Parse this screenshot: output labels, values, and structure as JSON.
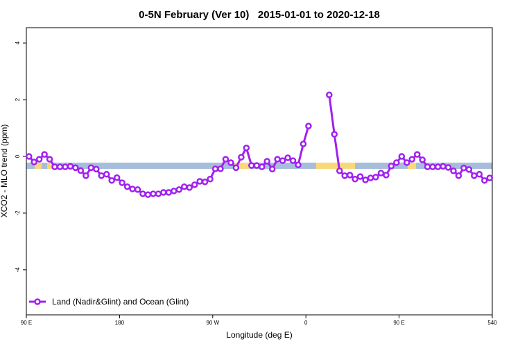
{
  "chart_data": {
    "type": "line",
    "title": "0-5N February (Ver 10)   2015-01-01 to 2020-12-18",
    "x_label": "Longitude (deg E)",
    "y_label": "XCO2 - MLO trend (ppm)",
    "x": [
      92.5,
      97.5,
      102.5,
      107.5,
      112.5,
      117.5,
      122.5,
      127.5,
      132.5,
      137.5,
      142.5,
      147.5,
      152.5,
      157.5,
      162.5,
      167.5,
      172.5,
      177.5,
      182.5,
      187.5,
      192.5,
      197.5,
      202.5,
      207.5,
      212.5,
      217.5,
      222.5,
      227.5,
      232.5,
      237.5,
      242.5,
      247.5,
      252.5,
      257.5,
      262.5,
      267.5,
      272.5,
      277.5,
      282.5,
      287.5,
      292.5,
      297.5,
      302.5,
      307.5,
      312.5,
      317.5,
      322.5,
      327.5,
      332.5,
      337.5,
      342.5,
      347.5,
      352.5,
      357.5,
      362.5,
      367.5,
      372.5,
      377.5,
      382.5,
      387.5,
      392.5,
      397.5,
      402.5,
      407.5,
      412.5,
      417.5,
      422.5,
      427.5,
      432.5,
      437.5,
      442.5,
      447.5,
      452.5,
      457.5,
      462.5,
      467.5,
      472.5,
      477.5,
      482.5,
      487.5,
      492.5,
      497.5,
      502.5,
      507.5,
      512.5,
      517.5,
      522.5,
      527.5,
      532.5,
      537.5
    ],
    "series": [
      {
        "name": "Land (Nadir&Glint) and Ocean (Glint)",
        "color": "#a020f0",
        "values": [
          0,
          -0.2,
          -0.1,
          0.07,
          -0.1,
          -0.37,
          -0.37,
          -0.37,
          -0.35,
          -0.4,
          -0.5,
          -0.68,
          -0.4,
          -0.45,
          -0.68,
          -0.63,
          -0.85,
          -0.75,
          -0.93,
          -1.07,
          -1.15,
          -1.17,
          -1.32,
          -1.35,
          -1.32,
          -1.32,
          -1.27,
          -1.27,
          -1.22,
          -1.17,
          -1.07,
          -1.1,
          -1.0,
          -0.88,
          -0.9,
          -0.8,
          -0.44,
          -0.44,
          -0.1,
          -0.22,
          -0.4,
          -0.03,
          0.3,
          -0.32,
          -0.32,
          -0.37,
          -0.17,
          -0.45,
          -0.1,
          -0.15,
          -0.05,
          -0.15,
          -0.3,
          0.44,
          1.07,
          null,
          null,
          null,
          2.17,
          0.78,
          -0.51,
          -0.68,
          -0.66,
          -0.8,
          -0.71,
          -0.83,
          -0.76,
          -0.73,
          -0.59,
          -0.66,
          -0.34,
          -0.22,
          0,
          -0.22,
          -0.1,
          0.07,
          -0.12,
          -0.37,
          -0.37,
          -0.37,
          -0.35,
          -0.39,
          -0.51,
          -0.68,
          -0.41,
          -0.46,
          -0.68,
          -0.63,
          -0.85,
          -0.76
        ]
      }
    ],
    "xlim": [
      90,
      540
    ],
    "xticks": [
      {
        "value": 90,
        "label": "90 E"
      },
      180,
      {
        "value": 270,
        "label": "90 W"
      },
      {
        "value": 360,
        "label": "0"
      },
      {
        "value": 450,
        "label": "90 E"
      },
      540
    ],
    "ylim": [
      -5.59,
      4.54
    ],
    "yticks": [
      -4,
      -2,
      0,
      2,
      4
    ],
    "legend": "bottomleft"
  }
}
